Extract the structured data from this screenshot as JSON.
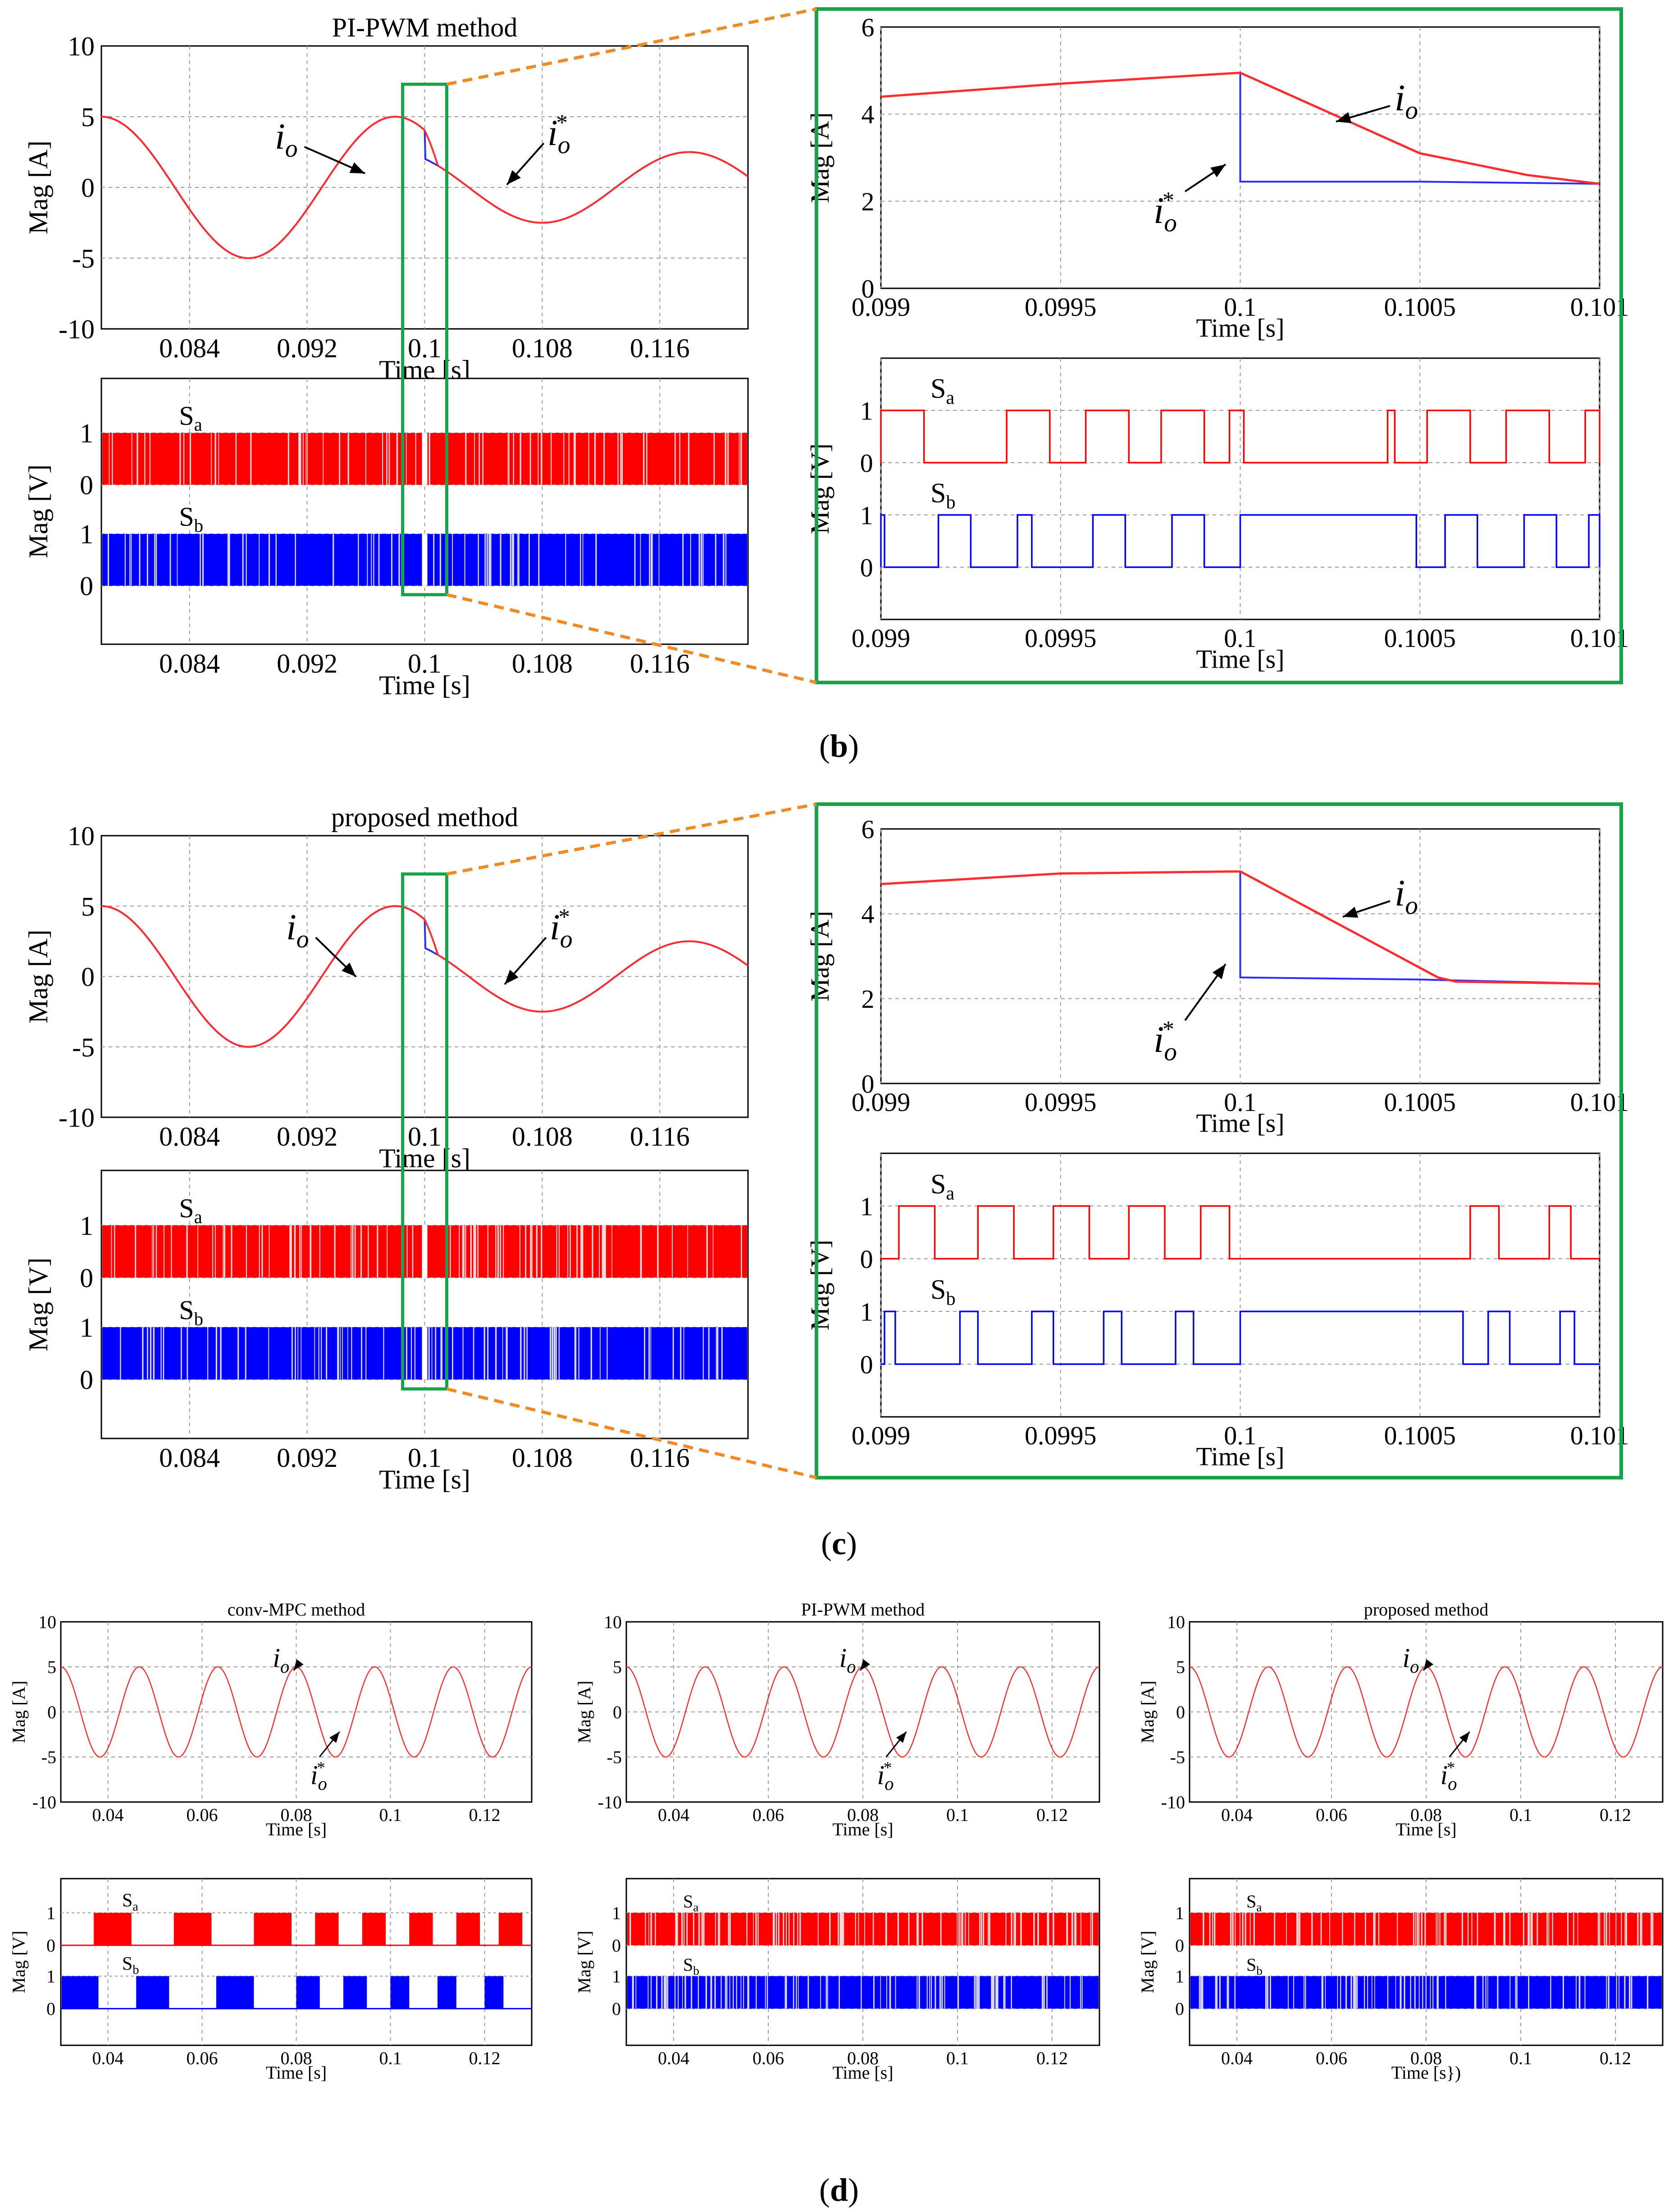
{
  "figure": {
    "labels": {
      "b": {
        "open": "(",
        "letter": "b",
        "close": ")"
      },
      "c": {
        "open": "(",
        "letter": "c",
        "close": ")"
      },
      "d": {
        "open": "(",
        "letter": "d",
        "close": ")"
      }
    }
  },
  "colors": {
    "current": "#ff2d2d",
    "reference": "#2b2bff",
    "sa": "#ff0000",
    "sb": "#0000ff",
    "grid": "#9a9a9a",
    "zoom_box": "#17a34a",
    "zoom_lines": "#f08a24"
  },
  "chart_data": [
    {
      "id": "b_current",
      "type": "line",
      "title": "PI-PWM method",
      "xlabel": "Time [s]",
      "ylabel": "Mag [A]",
      "xlim": [
        0.078,
        0.122
      ],
      "ylim": [
        -10,
        10
      ],
      "xticks": [
        "0.084",
        "0.092",
        "0.1",
        "0.108",
        "0.116"
      ],
      "yticks": [
        "10",
        "5",
        "0",
        "-5",
        "-10"
      ],
      "series": [
        {
          "name": "i_o",
          "label_main": "i",
          "label_sub": "o",
          "amplitude_before": 5,
          "amplitude_after": 2.5,
          "frequency_hz": 50,
          "step_time": 0.1
        },
        {
          "name": "i_o*",
          "label_main": "i",
          "label_sub": "o",
          "label_sup": "*",
          "amplitude_before": 5,
          "amplitude_after": 2.5,
          "frequency_hz": 50,
          "step_time": 0.1
        }
      ]
    },
    {
      "id": "b_switch",
      "type": "line",
      "xlabel": "Time [s]",
      "ylabel": "Mag [V]",
      "xlim": [
        0.078,
        0.122
      ],
      "xticks": [
        "0.084",
        "0.092",
        "0.1",
        "0.108",
        "0.116"
      ],
      "level_ticks": [
        "1",
        "0",
        "1",
        "0"
      ],
      "series": [
        {
          "name": "S_a",
          "label_main": "S",
          "label_sub": "a",
          "levels": [
            0,
            1
          ],
          "switching": "high-frequency PWM"
        },
        {
          "name": "S_b",
          "label_main": "S",
          "label_sub": "b",
          "levels": [
            0,
            1
          ],
          "switching": "high-frequency PWM"
        }
      ]
    },
    {
      "id": "b_current_zoom",
      "type": "line",
      "xlabel": "Time [s]",
      "ylabel": "Mag [A]",
      "xlim": [
        0.099,
        0.101
      ],
      "ylim": [
        0,
        6
      ],
      "xticks": [
        "0.099",
        "0.0995",
        "0.1",
        "0.1005",
        "0.101"
      ],
      "yticks": [
        "6",
        "4",
        "2",
        "0"
      ],
      "series": [
        {
          "name": "i_o",
          "label_main": "i",
          "label_sub": "o",
          "x": [
            0.099,
            0.0995,
            0.1,
            0.1005,
            0.1008,
            0.101
          ],
          "y": [
            4.4,
            4.7,
            4.95,
            3.1,
            2.6,
            2.4
          ]
        },
        {
          "name": "i_o*",
          "label_main": "i",
          "label_sub": "o",
          "label_sup": "*",
          "x": [
            0.099,
            0.0995,
            0.1,
            0.1,
            0.1005,
            0.101
          ],
          "y": [
            4.4,
            4.7,
            4.95,
            2.45,
            2.45,
            2.4
          ]
        }
      ]
    },
    {
      "id": "b_switch_zoom",
      "type": "line",
      "xlabel": "Time [s]",
      "ylabel": "Mag [V]",
      "xlim": [
        0.099,
        0.101
      ],
      "xticks": [
        "0.099",
        "0.0995",
        "0.1",
        "0.1005",
        "0.101"
      ],
      "level_ticks": [
        "1",
        "0",
        "1",
        "0"
      ],
      "series": [
        {
          "name": "S_a",
          "label_main": "S",
          "label_sub": "a",
          "high_intervals": [
            [
              0.099,
              0.09912
            ],
            [
              0.09935,
              0.09947
            ],
            [
              0.09957,
              0.09969
            ],
            [
              0.09978,
              0.0999
            ],
            [
              0.09997,
              0.10001
            ],
            [
              0.10041,
              0.10043
            ],
            [
              0.10052,
              0.10064
            ],
            [
              0.10074,
              0.10086
            ],
            [
              0.10096,
              0.101
            ]
          ]
        },
        {
          "name": "S_b",
          "label_main": "S",
          "label_sub": "b",
          "high_intervals": [
            [
              0.099,
              0.09901
            ],
            [
              0.09916,
              0.09925
            ],
            [
              0.09938,
              0.09942
            ],
            [
              0.09959,
              0.09968
            ],
            [
              0.09981,
              0.0999
            ],
            [
              0.1,
              0.10049
            ],
            [
              0.10057,
              0.10066
            ],
            [
              0.10079,
              0.10088
            ],
            [
              0.10097,
              0.101
            ]
          ]
        }
      ]
    },
    {
      "id": "c_current",
      "type": "line",
      "title": "proposed method",
      "xlabel": "Time [s]",
      "ylabel": "Mag [A]",
      "xlim": [
        0.078,
        0.122
      ],
      "ylim": [
        -10,
        10
      ],
      "xticks": [
        "0.084",
        "0.092",
        "0.1",
        "0.108",
        "0.116"
      ],
      "yticks": [
        "10",
        "5",
        "0",
        "-5",
        "-10"
      ],
      "series": [
        {
          "name": "i_o",
          "label_main": "i",
          "label_sub": "o",
          "amplitude_before": 5,
          "amplitude_after": 2.5,
          "frequency_hz": 50,
          "step_time": 0.1
        },
        {
          "name": "i_o*",
          "label_main": "i",
          "label_sub": "o",
          "label_sup": "*",
          "amplitude_before": 5,
          "amplitude_after": 2.5,
          "frequency_hz": 50,
          "step_time": 0.1
        }
      ]
    },
    {
      "id": "c_switch",
      "type": "line",
      "xlabel": "Time [s]",
      "ylabel": "Mag [V]",
      "xlim": [
        0.078,
        0.122
      ],
      "xticks": [
        "0.084",
        "0.092",
        "0.1",
        "0.108",
        "0.116"
      ],
      "level_ticks": [
        "1",
        "0",
        "1",
        "0"
      ],
      "series": [
        {
          "name": "S_a",
          "label_main": "S",
          "label_sub": "a",
          "levels": [
            0,
            1
          ],
          "switching": "high-frequency"
        },
        {
          "name": "S_b",
          "label_main": "S",
          "label_sub": "b",
          "levels": [
            0,
            1
          ],
          "switching": "high-frequency"
        }
      ]
    },
    {
      "id": "c_current_zoom",
      "type": "line",
      "xlabel": "Time [s]",
      "ylabel": "Mag [A]",
      "xlim": [
        0.099,
        0.101
      ],
      "ylim": [
        0,
        6
      ],
      "xticks": [
        "0.099",
        "0.0995",
        "0.1",
        "0.1005",
        "0.101"
      ],
      "yticks": [
        "6",
        "4",
        "2",
        "0"
      ],
      "series": [
        {
          "name": "i_o",
          "label_main": "i",
          "label_sub": "o",
          "x": [
            0.099,
            0.0995,
            0.1,
            0.10055,
            0.1006,
            0.101
          ],
          "y": [
            4.7,
            4.95,
            5.0,
            2.5,
            2.4,
            2.35
          ]
        },
        {
          "name": "i_o*",
          "label_main": "i",
          "label_sub": "o",
          "label_sup": "*",
          "x": [
            0.099,
            0.0995,
            0.1,
            0.1,
            0.1005,
            0.101
          ],
          "y": [
            4.7,
            4.95,
            5.0,
            2.5,
            2.45,
            2.35
          ]
        }
      ]
    },
    {
      "id": "c_switch_zoom",
      "type": "line",
      "xlabel": "Time [s]",
      "ylabel": "Mag [V]",
      "xlim": [
        0.099,
        0.101
      ],
      "xticks": [
        "0.099",
        "0.0995",
        "0.1",
        "0.1005",
        "0.101"
      ],
      "level_ticks": [
        "1",
        "0",
        "1",
        "0"
      ],
      "series": [
        {
          "name": "S_a",
          "label_main": "S",
          "label_sub": "a",
          "high_intervals": [
            [
              0.09905,
              0.09915
            ],
            [
              0.09927,
              0.09937
            ],
            [
              0.09948,
              0.09958
            ],
            [
              0.09969,
              0.09979
            ],
            [
              0.09989,
              0.09997
            ],
            [
              0.10064,
              0.10072
            ],
            [
              0.10086,
              0.10092
            ]
          ]
        },
        {
          "name": "S_b",
          "label_main": "S",
          "label_sub": "b",
          "high_intervals": [
            [
              0.09901,
              0.09904
            ],
            [
              0.09922,
              0.09927
            ],
            [
              0.09942,
              0.09948
            ],
            [
              0.09962,
              0.09967
            ],
            [
              0.09982,
              0.09987
            ],
            [
              0.1,
              0.10062
            ],
            [
              0.10069,
              0.10075
            ],
            [
              0.10089,
              0.10093
            ]
          ]
        }
      ]
    },
    {
      "id": "d1_current",
      "type": "line",
      "title": "conv-MPC method",
      "xlabel": "Time [s]",
      "ylabel": "Mag [A]",
      "xlim": [
        0.03,
        0.13
      ],
      "ylim": [
        -10,
        10
      ],
      "xticks": [
        "0.04",
        "0.06",
        "0.08",
        "0.1",
        "0.12"
      ],
      "yticks": [
        "10",
        "5",
        "0",
        "-5",
        "-10"
      ],
      "series": [
        {
          "name": "i_o",
          "label_main": "i",
          "label_sub": "o",
          "amplitude": 5,
          "frequency_hz": 60
        },
        {
          "name": "i_o*",
          "label_main": "i",
          "label_sub": "o",
          "label_sup": "*",
          "amplitude": 5,
          "frequency_hz": 60
        }
      ]
    },
    {
      "id": "d1_switch",
      "type": "line",
      "xlabel": "Time [s]",
      "ylabel": "Mag [V]",
      "xlim": [
        0.03,
        0.13
      ],
      "xticks": [
        "0.04",
        "0.06",
        "0.08",
        "0.1",
        "0.12"
      ],
      "level_ticks": [
        "1",
        "0",
        "1",
        "0"
      ],
      "series": [
        {
          "name": "S_a",
          "label_main": "S",
          "label_sub": "a",
          "switching": "low-frequency blocks"
        },
        {
          "name": "S_b",
          "label_main": "S",
          "label_sub": "b",
          "switching": "low-frequency blocks"
        }
      ]
    },
    {
      "id": "d2_current",
      "type": "line",
      "title": "PI-PWM method",
      "xlabel": "Time [s]",
      "ylabel": "Mag [A]",
      "xlim": [
        0.03,
        0.13
      ],
      "ylim": [
        -10,
        10
      ],
      "xticks": [
        "0.04",
        "0.06",
        "0.08",
        "0.1",
        "0.12"
      ],
      "yticks": [
        "10",
        "5",
        "0",
        "-5",
        "-10"
      ],
      "series": [
        {
          "name": "i_o",
          "label_main": "i",
          "label_sub": "o",
          "amplitude": 5,
          "frequency_hz": 60
        },
        {
          "name": "i_o*",
          "label_main": "i",
          "label_sub": "o",
          "label_sup": "*",
          "amplitude": 5,
          "frequency_hz": 60
        }
      ]
    },
    {
      "id": "d2_switch",
      "type": "line",
      "xlabel": "Time [s]",
      "ylabel": "Mag [V]",
      "xlim": [
        0.03,
        0.13
      ],
      "xticks": [
        "0.04",
        "0.06",
        "0.08",
        "0.1",
        "0.12"
      ],
      "level_ticks": [
        "1",
        "0",
        "1",
        "0"
      ],
      "series": [
        {
          "name": "S_a",
          "label_main": "S",
          "label_sub": "a",
          "switching": "high-frequency PWM"
        },
        {
          "name": "S_b",
          "label_main": "S",
          "label_sub": "b",
          "switching": "high-frequency PWM"
        }
      ]
    },
    {
      "id": "d3_current",
      "type": "line",
      "title": "proposed method",
      "xlabel": "Time [s]",
      "ylabel": "Mag [A]",
      "xlim": [
        0.03,
        0.13
      ],
      "ylim": [
        -10,
        10
      ],
      "xticks": [
        "0.04",
        "0.06",
        "0.08",
        "0.1",
        "0.12"
      ],
      "yticks": [
        "10",
        "5",
        "0",
        "-5",
        "-10"
      ],
      "series": [
        {
          "name": "i_o",
          "label_main": "i",
          "label_sub": "o",
          "amplitude": 5,
          "frequency_hz": 60
        },
        {
          "name": "i_o*",
          "label_main": "i",
          "label_sub": "o",
          "label_sup": "*",
          "amplitude": 5,
          "frequency_hz": 60
        }
      ]
    },
    {
      "id": "d3_switch",
      "type": "line",
      "xlabel": "Time [s})",
      "ylabel": "Mag [V]",
      "xlim": [
        0.03,
        0.13
      ],
      "xticks": [
        "0.04",
        "0.06",
        "0.08",
        "0.1",
        "0.12"
      ],
      "level_ticks": [
        "1",
        "0",
        "1",
        "0"
      ],
      "series": [
        {
          "name": "S_a",
          "label_main": "S",
          "label_sub": "a",
          "switching": "high-frequency"
        },
        {
          "name": "S_b",
          "label_main": "S",
          "label_sub": "b",
          "switching": "high-frequency"
        }
      ]
    }
  ]
}
